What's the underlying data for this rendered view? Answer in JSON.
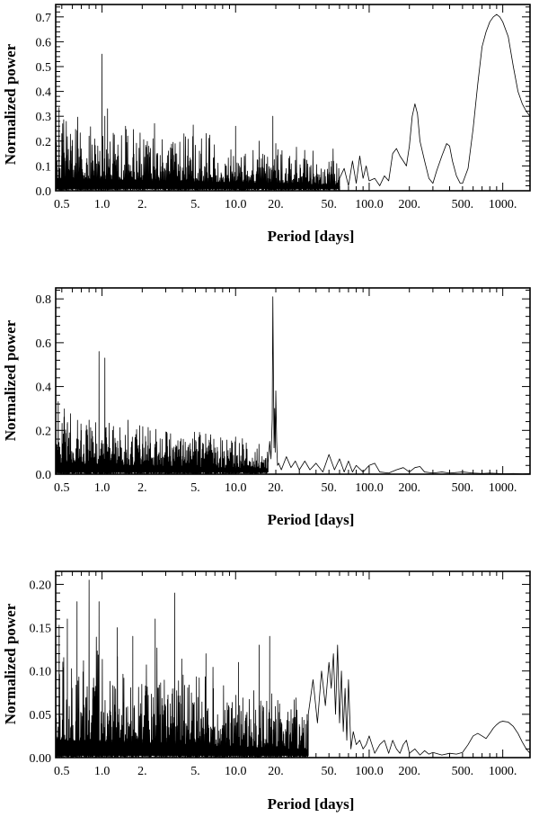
{
  "chart_data": [
    {
      "type": "line",
      "xlabel": "Period [days]",
      "ylabel": "Normalized power",
      "xscale": "log",
      "xlim": [
        0.45,
        1600
      ],
      "ylim": [
        0,
        0.75
      ],
      "x_tick_labels": [
        "0.5",
        "1.0",
        "2.",
        "5.",
        "10.0",
        "20.",
        "50.",
        "100.0",
        "200.",
        "500.",
        "1000."
      ],
      "x_tick_values": [
        0.5,
        1,
        2,
        5,
        10,
        20,
        50,
        100,
        200,
        500,
        1000
      ],
      "y_tick_labels": [
        "0.0",
        "0.1",
        "0.2",
        "0.3",
        "0.4",
        "0.5",
        "0.6",
        "0.7"
      ],
      "y_tick_values": [
        0,
        0.1,
        0.2,
        0.3,
        0.4,
        0.5,
        0.6,
        0.7
      ],
      "noise": {
        "x_range": [
          0.45,
          60
        ],
        "baseline": 0.05,
        "amp": 0.16
      },
      "peaks": [
        {
          "x": 0.5,
          "y": 0.23
        },
        {
          "x": 0.6,
          "y": 0.2
        },
        {
          "x": 0.8,
          "y": 0.22
        },
        {
          "x": 1.0,
          "y": 0.55
        },
        {
          "x": 1.05,
          "y": 0.3
        },
        {
          "x": 1.1,
          "y": 0.33
        },
        {
          "x": 1.5,
          "y": 0.26
        },
        {
          "x": 10.0,
          "y": 0.26
        },
        {
          "x": 15.0,
          "y": 0.2
        },
        {
          "x": 19.0,
          "y": 0.3
        },
        {
          "x": 20.0,
          "y": 0.19
        }
      ],
      "x": [
        60,
        65,
        70,
        75,
        80,
        85,
        90,
        95,
        100,
        110,
        120,
        130,
        140,
        150,
        160,
        170,
        180,
        190,
        200,
        210,
        220,
        230,
        240,
        260,
        280,
        300,
        320,
        350,
        380,
        400,
        420,
        450,
        480,
        500,
        550,
        600,
        650,
        700,
        750,
        800,
        850,
        900,
        950,
        1000,
        1100,
        1200,
        1300,
        1400,
        1500,
        1600
      ],
      "y": [
        0.05,
        0.09,
        0.02,
        0.12,
        0.03,
        0.14,
        0.05,
        0.1,
        0.04,
        0.05,
        0.02,
        0.06,
        0.04,
        0.15,
        0.17,
        0.14,
        0.12,
        0.1,
        0.18,
        0.3,
        0.35,
        0.31,
        0.2,
        0.12,
        0.05,
        0.03,
        0.08,
        0.14,
        0.19,
        0.18,
        0.12,
        0.06,
        0.03,
        0.03,
        0.09,
        0.25,
        0.43,
        0.58,
        0.64,
        0.68,
        0.7,
        0.71,
        0.7,
        0.68,
        0.62,
        0.5,
        0.4,
        0.35,
        0.32,
        0.3
      ]
    },
    {
      "type": "line",
      "xlabel": "Period [days]",
      "ylabel": "Normalized power",
      "xscale": "log",
      "xlim": [
        0.45,
        1600
      ],
      "ylim": [
        0,
        0.85
      ],
      "x_tick_labels": [
        "0.5",
        "1.0",
        "2.",
        "5.",
        "10.0",
        "20.",
        "50.",
        "100.0",
        "200.",
        "500.",
        "1000."
      ],
      "x_tick_values": [
        0.5,
        1,
        2,
        5,
        10,
        20,
        50,
        100,
        200,
        500,
        1000
      ],
      "y_tick_labels": [
        "0.0",
        "0.2",
        "0.4",
        "0.6",
        "0.8"
      ],
      "y_tick_values": [
        0,
        0.2,
        0.4,
        0.6,
        0.8
      ],
      "noise": {
        "x_range": [
          0.45,
          17.5
        ],
        "baseline": 0.05,
        "amp": 0.15
      },
      "peaks": [
        {
          "x": 0.55,
          "y": 0.23
        },
        {
          "x": 0.7,
          "y": 0.2
        },
        {
          "x": 0.95,
          "y": 0.56
        },
        {
          "x": 1.05,
          "y": 0.53
        },
        {
          "x": 1.2,
          "y": 0.2
        },
        {
          "x": 6.5,
          "y": 0.18
        },
        {
          "x": 10.0,
          "y": 0.17
        }
      ],
      "x": [
        17.5,
        18.0,
        18.4,
        18.8,
        19.0,
        19.2,
        19.4,
        19.6,
        19.8,
        20.0,
        20.3,
        20.6,
        21.0,
        22,
        24,
        26,
        28,
        30,
        33,
        36,
        40,
        45,
        50,
        55,
        60,
        65,
        70,
        75,
        80,
        90,
        100,
        110,
        120,
        140,
        160,
        180,
        200,
        220,
        240,
        260,
        300,
        350,
        400,
        500,
        600,
        700,
        800,
        1000,
        1200,
        1400,
        1600
      ],
      "y": [
        0.05,
        0.15,
        0.07,
        0.25,
        0.81,
        0.45,
        0.12,
        0.3,
        0.1,
        0.38,
        0.15,
        0.04,
        0.05,
        0.02,
        0.08,
        0.03,
        0.06,
        0.02,
        0.06,
        0.02,
        0.05,
        0.01,
        0.09,
        0.02,
        0.07,
        0.01,
        0.06,
        0.01,
        0.04,
        0.01,
        0.04,
        0.05,
        0.01,
        0.005,
        0.02,
        0.03,
        0.01,
        0.03,
        0.035,
        0.01,
        0.005,
        0.01,
        0.005,
        0.01,
        0.005,
        0.003,
        0.005,
        0.002,
        0.003,
        0.002,
        0.003
      ]
    },
    {
      "type": "line",
      "xlabel": "Period [days]",
      "ylabel": "Normalized power",
      "xscale": "log",
      "xlim": [
        0.45,
        1600
      ],
      "ylim": [
        0,
        0.215
      ],
      "x_tick_labels": [
        "0.5",
        "1.0",
        "2.",
        "5.",
        "10.0",
        "20.",
        "50.",
        "100.0",
        "200.",
        "500.",
        "1000."
      ],
      "x_tick_values": [
        0.5,
        1,
        2,
        5,
        10,
        20,
        50,
        100,
        200,
        500,
        1000
      ],
      "y_tick_labels": [
        "0.00",
        "0.05",
        "0.10",
        "0.15",
        "0.20"
      ],
      "y_tick_values": [
        0,
        0.05,
        0.1,
        0.15,
        0.2
      ],
      "noise": {
        "x_range": [
          0.45,
          35
        ],
        "baseline": 0.02,
        "amp": 0.075
      },
      "peaks": [
        {
          "x": 0.55,
          "y": 0.16
        },
        {
          "x": 0.65,
          "y": 0.18
        },
        {
          "x": 0.8,
          "y": 0.205
        },
        {
          "x": 0.95,
          "y": 0.18
        },
        {
          "x": 1.3,
          "y": 0.15
        },
        {
          "x": 1.7,
          "y": 0.14
        },
        {
          "x": 2.5,
          "y": 0.16
        },
        {
          "x": 3.5,
          "y": 0.19
        },
        {
          "x": 6.0,
          "y": 0.12
        },
        {
          "x": 10.5,
          "y": 0.11
        },
        {
          "x": 15.0,
          "y": 0.13
        },
        {
          "x": 18.0,
          "y": 0.14
        }
      ],
      "x": [
        35,
        38,
        41,
        44,
        47,
        50,
        52,
        54,
        56,
        58,
        60,
        62,
        64,
        66,
        68,
        70,
        73,
        76,
        80,
        85,
        90,
        95,
        100,
        110,
        120,
        130,
        140,
        150,
        160,
        170,
        180,
        190,
        200,
        220,
        240,
        260,
        280,
        300,
        350,
        400,
        450,
        500,
        550,
        600,
        650,
        700,
        750,
        800,
        850,
        900,
        950,
        1000,
        1100,
        1200,
        1300,
        1400,
        1500,
        1600
      ],
      "y": [
        0.05,
        0.09,
        0.04,
        0.1,
        0.06,
        0.11,
        0.08,
        0.12,
        0.05,
        0.13,
        0.04,
        0.1,
        0.03,
        0.08,
        0.02,
        0.09,
        0.01,
        0.03,
        0.015,
        0.02,
        0.01,
        0.015,
        0.025,
        0.005,
        0.015,
        0.02,
        0.005,
        0.02,
        0.01,
        0.005,
        0.015,
        0.02,
        0.005,
        0.01,
        0.003,
        0.008,
        0.004,
        0.006,
        0.003,
        0.005,
        0.004,
        0.006,
        0.015,
        0.025,
        0.028,
        0.025,
        0.022,
        0.028,
        0.034,
        0.038,
        0.041,
        0.042,
        0.041,
        0.036,
        0.028,
        0.018,
        0.01,
        0.005
      ]
    }
  ]
}
